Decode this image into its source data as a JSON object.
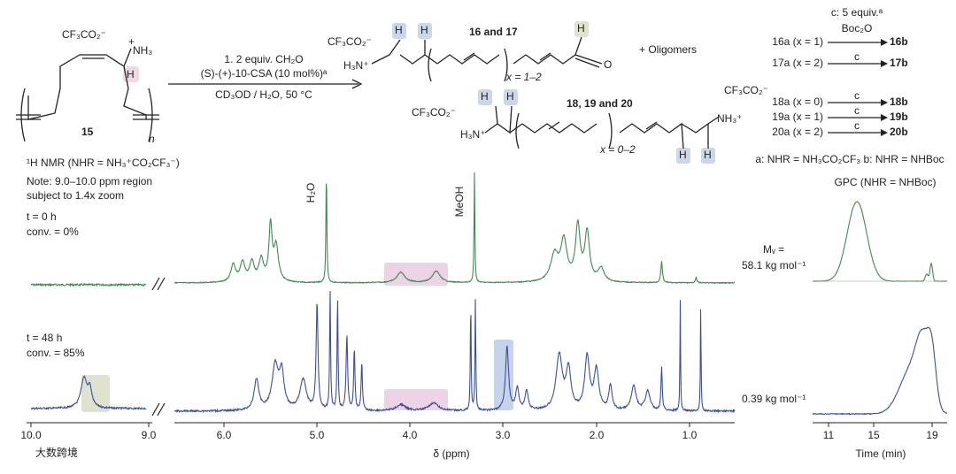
{
  "scheme": {
    "reactant": {
      "counterion": "CF₃CO₂⁻",
      "amine": "NH₃",
      "amine_charge": "+",
      "h": "H",
      "label": "15",
      "n": "n"
    },
    "conditions": {
      "line1": "1. 2 equiv. CH₂O",
      "line2": "(S)-(+)-10-CSA (10 mol%)ᵃ",
      "line3": "CD₃OD / H₂O, 50 °C"
    },
    "product1": {
      "counterion": "CF₃CO₂⁻",
      "amine": "H₃N⁺",
      "h1": "H",
      "h2": "H",
      "label": "16 and 17",
      "x": "x = 1–2",
      "aldehyde_h": "H",
      "o": "O"
    },
    "oligomers": "+ Oligomers",
    "product2": {
      "counterion1": "CF₃CO₂⁻",
      "amine1": "H₃N⁺",
      "h1": "H",
      "h2": "H",
      "label": "18, 19 and 20",
      "x": "x = 0–2",
      "counterion2": "CF₃CO₂⁻",
      "amine2": "NH₃⁺",
      "h3": "H",
      "h4": "H"
    },
    "boc": {
      "reagent_top": "c: 5 equiv.ᵃ",
      "reagent_bottom": "Boc₂O",
      "rows": [
        {
          "start": "16a (x = 1)",
          "c": "",
          "end": "16b"
        },
        {
          "start": "17a (x = 2)",
          "c": "c",
          "end": "17b"
        },
        {
          "start": "18a (x = 0)",
          "c": "c",
          "end": "18b"
        },
        {
          "start": "19a (x = 1)",
          "c": "c",
          "end": "19b"
        },
        {
          "start": "20a (x = 2)",
          "c": "c",
          "end": "20b"
        }
      ],
      "footnote": "a: NHR = NH₃CO₂CF₃  b: NHR = NHBoc"
    }
  },
  "nmr": {
    "title": "¹H NMR (NHR = NH₃⁺CO₂CF₃⁻)",
    "note1": "Note: 9.0–10.0 ppm region",
    "note2": "subject to 1.4x zoom",
    "t0": "t = 0 h",
    "conv0": "conv. = 0%",
    "t48": "t = 48 h",
    "conv48": "conv. = 85%",
    "h2o": "H₂O",
    "meoh": "MeOH",
    "inset_ticks": [
      "10.0",
      "9.0"
    ],
    "ticks": [
      "6.0",
      "5.0",
      "4.0",
      "3.0",
      "2.0",
      "1.0"
    ],
    "axis_label": "δ (ppm)"
  },
  "gpc": {
    "title": "GPC (NHR = NHBoc)",
    "mv": "Mᵥ =",
    "mw0": "58.1 kg mol⁻¹",
    "mw48": "0.39 kg mol⁻¹",
    "ticks": [
      "11",
      "15",
      "19"
    ],
    "axis_label": "Time (min)"
  },
  "watermark": "大数跨境"
}
